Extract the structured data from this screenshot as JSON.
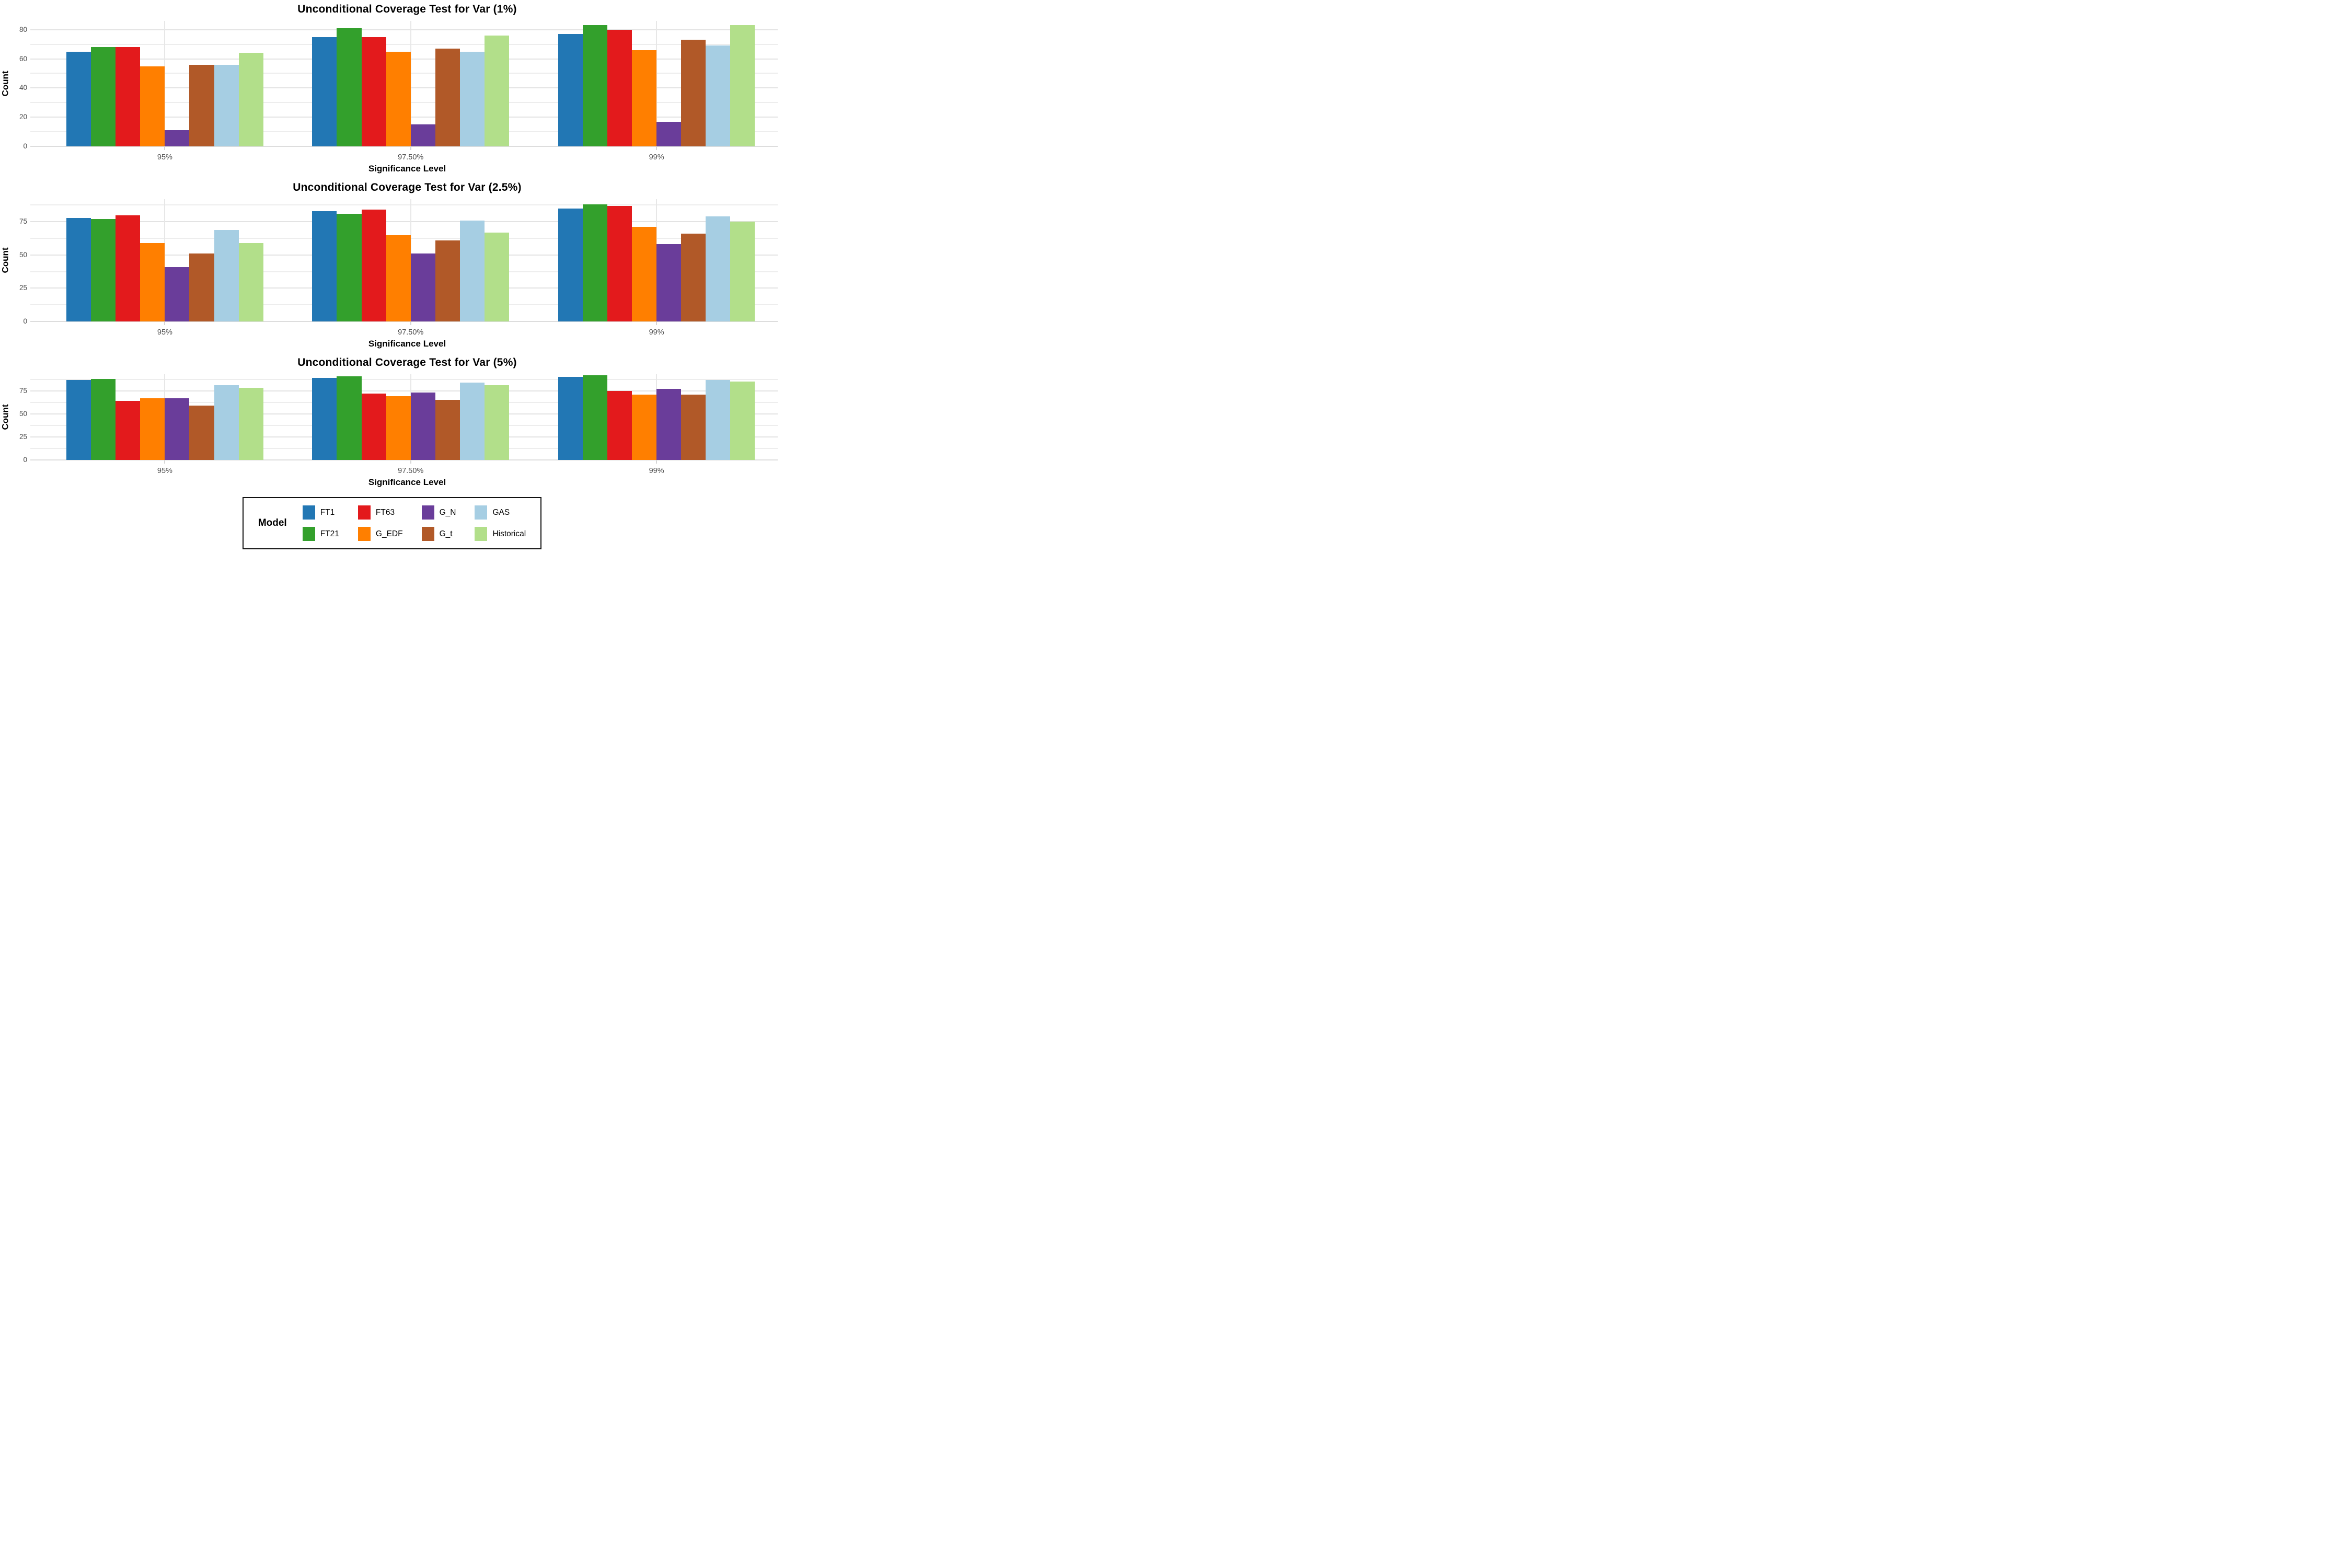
{
  "legend": {
    "title": "Model",
    "entries": [
      {
        "label": "FT1",
        "color": "#2277b4"
      },
      {
        "label": "FT21",
        "color": "#33a02c"
      },
      {
        "label": "FT63",
        "color": "#e31a1c"
      },
      {
        "label": "G_EDF",
        "color": "#ff7f00"
      },
      {
        "label": "G_N",
        "color": "#6a3d9a"
      },
      {
        "label": "G_t",
        "color": "#b15928"
      },
      {
        "label": "GAS",
        "color": "#a6cee3"
      },
      {
        "label": "Historical",
        "color": "#b2df8a"
      }
    ]
  },
  "chart_data": [
    {
      "type": "bar",
      "title": "Unconditional Coverage Test for Var (1%)",
      "xlabel": "Significance Level",
      "ylabel": "Count",
      "categories": [
        "95%",
        "97.50%",
        "99%"
      ],
      "series": [
        {
          "name": "FT1",
          "values": [
            65,
            75,
            77
          ]
        },
        {
          "name": "FT21",
          "values": [
            68,
            81,
            83
          ]
        },
        {
          "name": "FT63",
          "values": [
            68,
            75,
            80
          ]
        },
        {
          "name": "G_EDF",
          "values": [
            55,
            65,
            66
          ]
        },
        {
          "name": "G_N",
          "values": [
            11,
            15,
            17
          ]
        },
        {
          "name": "G_t",
          "values": [
            56,
            67,
            73
          ]
        },
        {
          "name": "GAS",
          "values": [
            56,
            65,
            69
          ]
        },
        {
          "name": "Historical",
          "values": [
            64,
            76,
            83
          ]
        }
      ],
      "ylim": [
        0,
        86
      ],
      "yticks": [
        0,
        20,
        40,
        60,
        80
      ],
      "grid_minor_step": 10,
      "grid_major_step": 20,
      "legend_position": "none",
      "grid": "on"
    },
    {
      "type": "bar",
      "title": "Unconditional Coverage Test for Var (2.5%)",
      "xlabel": "Significance Level",
      "ylabel": "Count",
      "categories": [
        "95%",
        "97.50%",
        "99%"
      ],
      "series": [
        {
          "name": "FT1",
          "values": [
            78,
            83,
            85
          ]
        },
        {
          "name": "FT21",
          "values": [
            77,
            81,
            88
          ]
        },
        {
          "name": "FT63",
          "values": [
            80,
            84,
            87
          ]
        },
        {
          "name": "G_EDF",
          "values": [
            59,
            65,
            71
          ]
        },
        {
          "name": "G_N",
          "values": [
            41,
            51,
            58
          ]
        },
        {
          "name": "G_t",
          "values": [
            51,
            61,
            66
          ]
        },
        {
          "name": "GAS",
          "values": [
            69,
            76,
            79
          ]
        },
        {
          "name": "Historical",
          "values": [
            59,
            67,
            75
          ]
        }
      ],
      "ylim": [
        0,
        92
      ],
      "yticks": [
        0,
        25,
        50,
        75
      ],
      "grid_minor_step": 12.5,
      "grid_major_step": 25,
      "legend_position": "none",
      "grid": "on"
    },
    {
      "type": "bar",
      "title": "Unconditional Coverage Test for Var (5%)",
      "xlabel": "Significance Level",
      "ylabel": "Count",
      "categories": [
        "95%",
        "97.50%",
        "99%"
      ],
      "series": [
        {
          "name": "FT1",
          "values": [
            87,
            89,
            90
          ]
        },
        {
          "name": "FT21",
          "values": [
            88,
            91,
            92
          ]
        },
        {
          "name": "FT63",
          "values": [
            64,
            72,
            75
          ]
        },
        {
          "name": "G_EDF",
          "values": [
            67,
            69,
            71
          ]
        },
        {
          "name": "G_N",
          "values": [
            67,
            73,
            77
          ]
        },
        {
          "name": "G_t",
          "values": [
            59,
            65,
            71
          ]
        },
        {
          "name": "GAS",
          "values": [
            81,
            84,
            87
          ]
        },
        {
          "name": "Historical",
          "values": [
            78,
            81,
            85
          ]
        }
      ],
      "ylim": [
        0,
        93
      ],
      "yticks": [
        0,
        25,
        50,
        75
      ],
      "grid_minor_step": 12.5,
      "grid_major_step": 25,
      "legend_position": "bottom",
      "grid": "on"
    }
  ]
}
